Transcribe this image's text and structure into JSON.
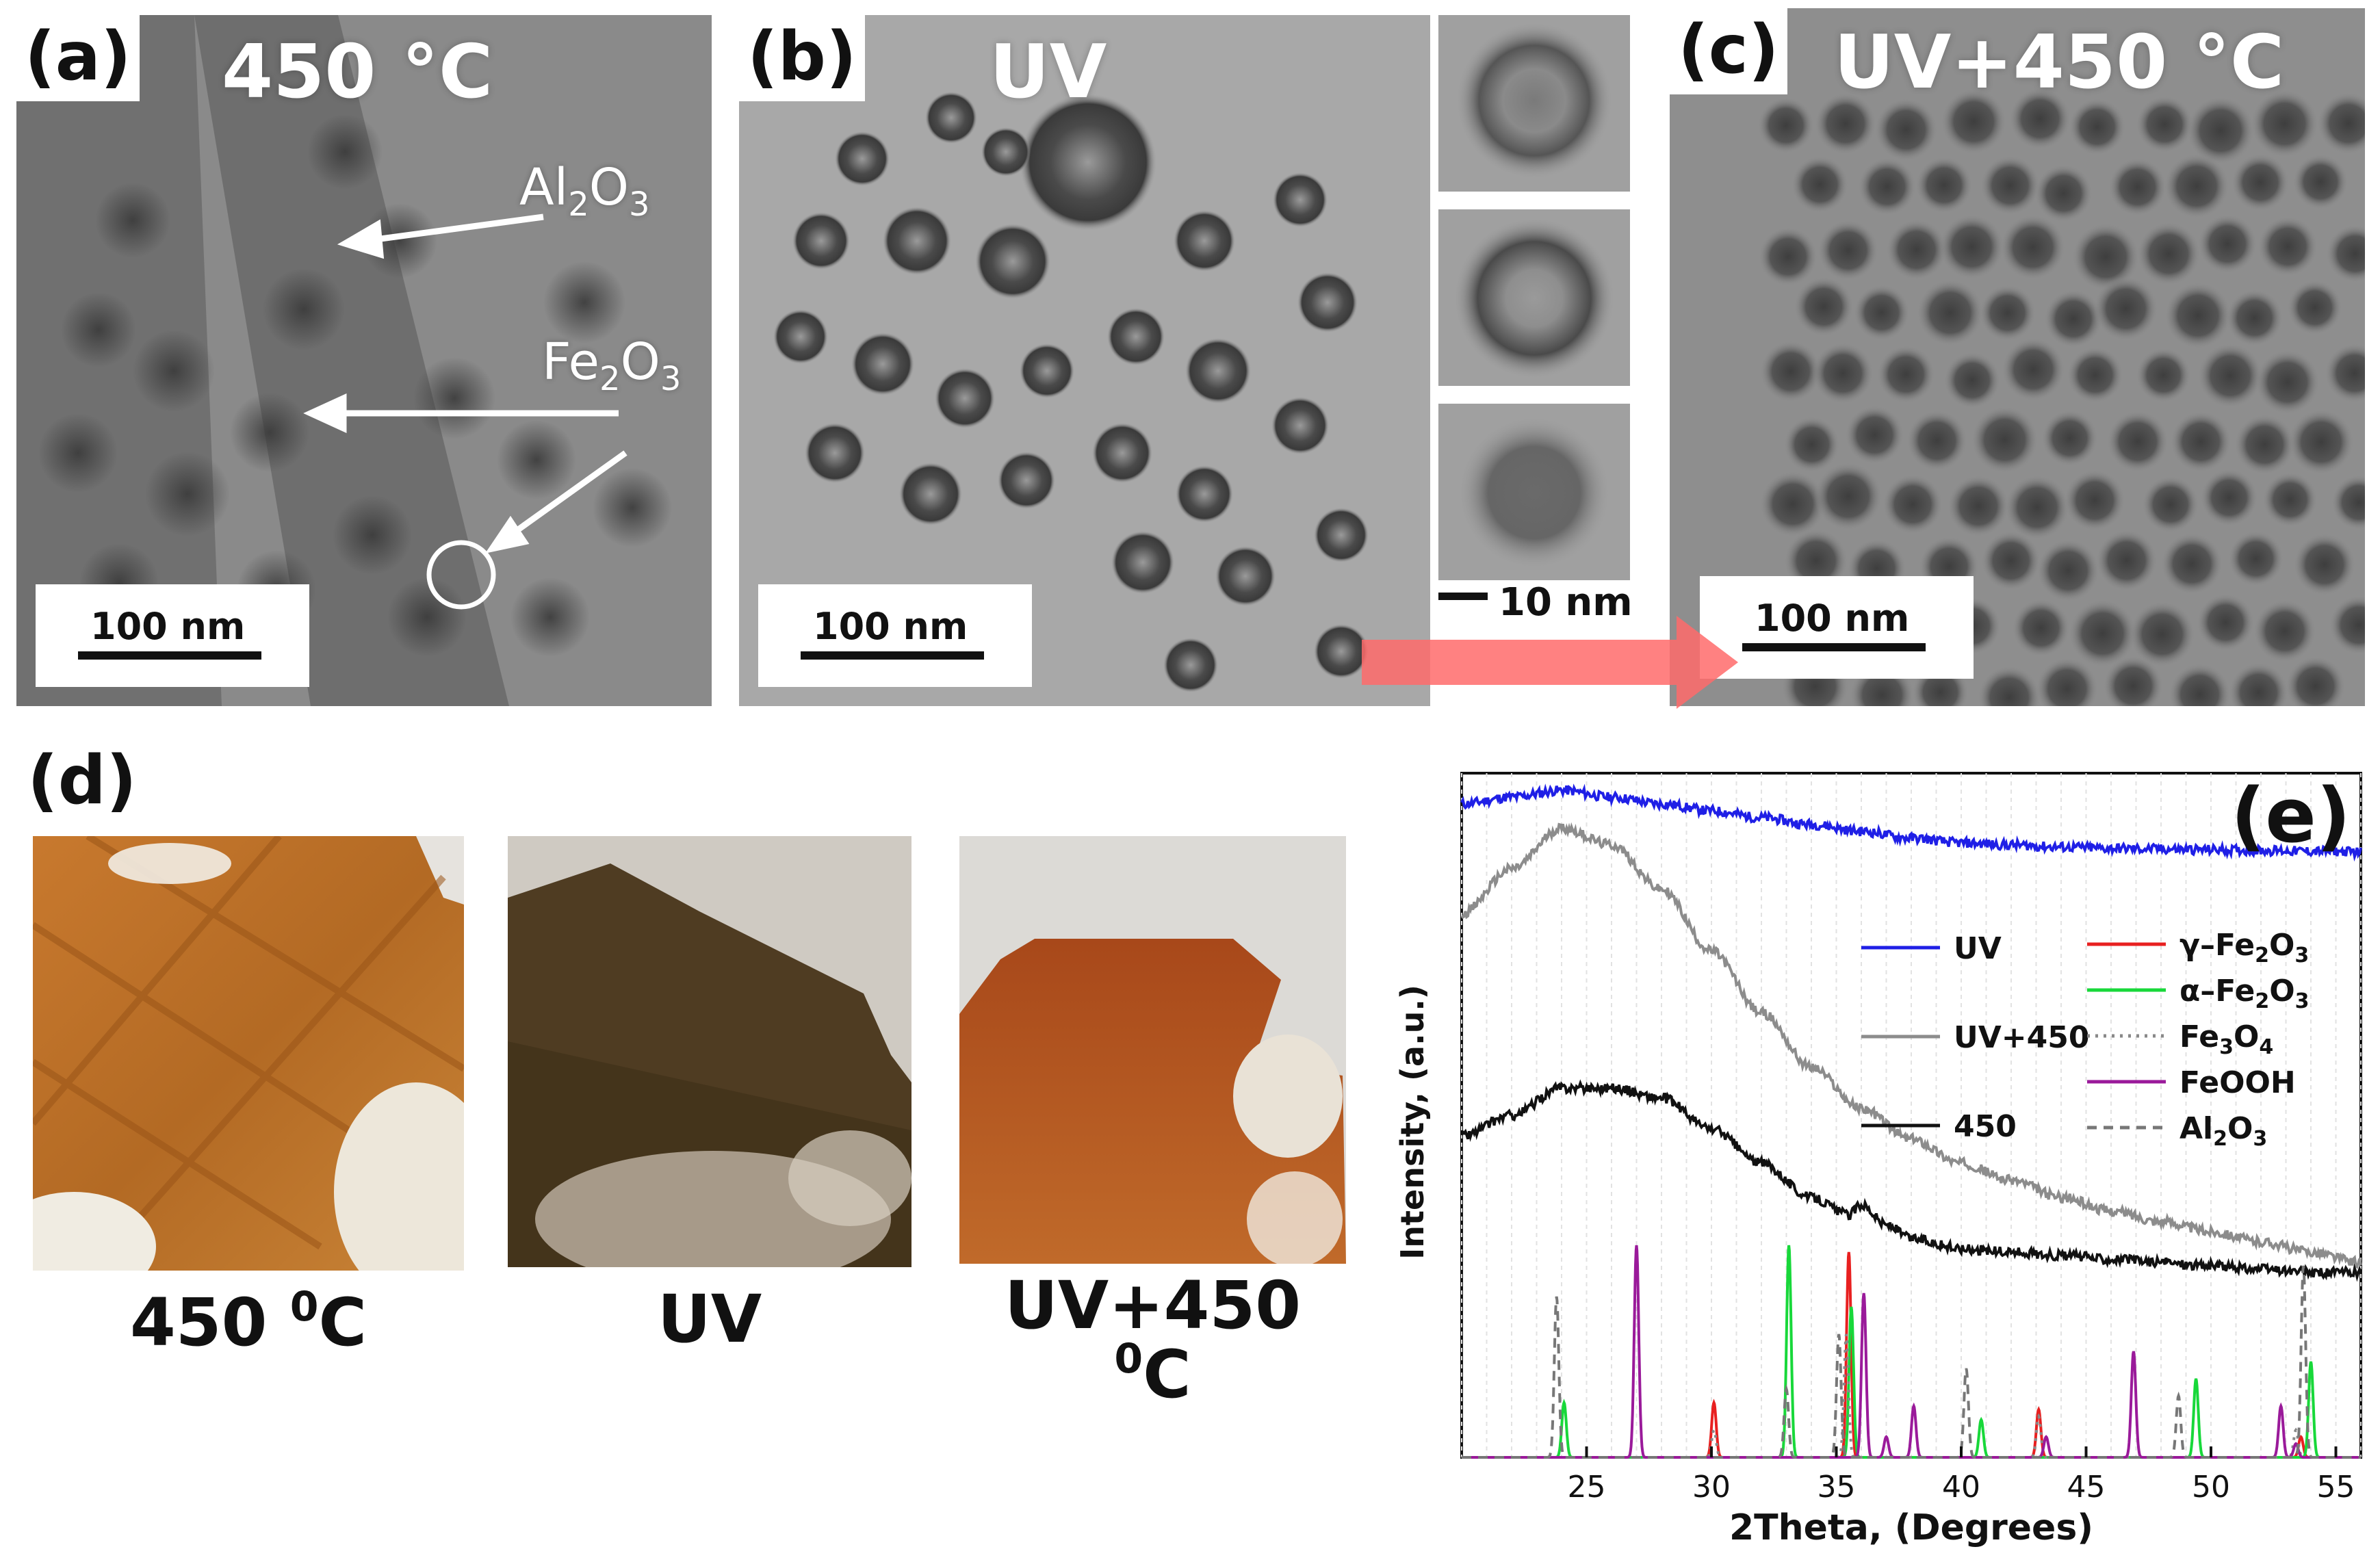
{
  "panels": {
    "a": {
      "label": "(a)",
      "condition": "450 °C",
      "scale": "100 nm",
      "annotations": [
        {
          "main": "Al",
          "sub1": "2",
          "mid": "O",
          "sub2": "3"
        },
        {
          "main": "Fe",
          "sub1": "2",
          "mid": "O",
          "sub2": "3"
        }
      ]
    },
    "b": {
      "label": "(b)",
      "condition": "UV",
      "scale": "100 nm",
      "inset_scale": "10 nm"
    },
    "c": {
      "label": "(c)",
      "condition": "UV+450 °C",
      "scale": "100 nm"
    },
    "d": {
      "label": "(d)",
      "captions": [
        {
          "text": "450 ",
          "sup": "0",
          "unit": "C"
        },
        {
          "text": "UV",
          "sup": "",
          "unit": ""
        },
        {
          "text": "UV+450 ",
          "sup": "0",
          "unit": "C"
        }
      ]
    },
    "e": {
      "label": "(e)"
    }
  },
  "colors": {
    "uv": "#1f1fe6",
    "uv450": "#8c8c8c",
    "t450": "#111111",
    "gamma": "#e82020",
    "alpha": "#18d83a",
    "fe3o4": "#888888",
    "feooh": "#9a1a9a",
    "al2o3": "#777777",
    "arrow": "#ff6b6b"
  },
  "chart_data": {
    "type": "line",
    "xlabel": "2Theta, (Degrees)",
    "ylabel": "Intensity, (a.u.)",
    "xlim": [
      20,
      56
    ],
    "xticks": [
      25,
      30,
      35,
      40,
      45,
      50,
      55
    ],
    "ylim": [
      0,
      100
    ],
    "legend": [
      {
        "name": "UV",
        "style": "solid",
        "color": "#1f1fe6"
      },
      {
        "name": "UV+450",
        "style": "solid",
        "color": "#8c8c8c"
      },
      {
        "name": "450",
        "style": "solid",
        "color": "#111111"
      },
      {
        "name": "γ–Fe2O3",
        "base": "γ–Fe",
        "s1": "2",
        "m": "O",
        "s2": "3",
        "style": "solid",
        "color": "#e82020"
      },
      {
        "name": "α–Fe2O3",
        "base": "α–Fe",
        "s1": "2",
        "m": "O",
        "s2": "3",
        "style": "solid",
        "color": "#18d83a"
      },
      {
        "name": "Fe3O4",
        "base": "Fe",
        "s1": "3",
        "m": "O",
        "s2": "4",
        "style": "dotted",
        "color": "#888888"
      },
      {
        "name": "FeOOH",
        "base": "FeOOH",
        "s1": "",
        "m": "",
        "s2": "",
        "style": "solid",
        "color": "#9a1a9a"
      },
      {
        "name": "Al2O3",
        "base": "Al",
        "s1": "2",
        "m": "O",
        "s2": "3",
        "style": "dashed",
        "color": "#777777"
      }
    ],
    "series": [
      {
        "name": "UV",
        "x": [
          20,
          22,
          24,
          26,
          28,
          30,
          32,
          34,
          36,
          38,
          40,
          42,
          44,
          46,
          48,
          50,
          52,
          54,
          56
        ],
        "y": [
          95.5,
          96.5,
          97.5,
          96.5,
          95.5,
          94.5,
          93.5,
          92.5,
          91.5,
          90.5,
          89.8,
          89.5,
          89.2,
          89.0,
          88.9,
          88.8,
          88.7,
          88.6,
          88.5
        ]
      },
      {
        "name": "UV+450",
        "x": [
          20,
          22,
          24,
          26,
          28,
          30,
          32,
          34,
          36,
          38,
          40,
          42,
          44,
          46,
          48,
          50,
          52,
          54,
          56
        ],
        "y": [
          79.5,
          86,
          92,
          89.5,
          83,
          74,
          65,
          57,
          51,
          46.5,
          43,
          40.5,
          38,
          36,
          34.5,
          33,
          31.5,
          30,
          28.5
        ]
      },
      {
        "name": "450",
        "x": [
          20,
          22,
          24,
          26,
          28,
          30,
          32,
          34,
          35.5,
          36,
          37,
          38,
          40,
          42,
          44,
          46,
          48,
          50,
          52,
          54,
          56
        ],
        "y": [
          47,
          50,
          54,
          54,
          52.5,
          48,
          43,
          38,
          35.5,
          37,
          34,
          32,
          30.5,
          30,
          29.5,
          29,
          28.5,
          28,
          27.5,
          27,
          27
        ]
      }
    ],
    "reference_peaks": [
      {
        "phase": "γ–Fe2O3",
        "peaks": [
          [
            30.1,
            8
          ],
          [
            35.5,
            30
          ],
          [
            43.1,
            7
          ],
          [
            53.6,
            3
          ]
        ]
      },
      {
        "phase": "α–Fe2O3",
        "peaks": [
          [
            24.1,
            8
          ],
          [
            33.1,
            31
          ],
          [
            35.6,
            22
          ],
          [
            40.8,
            5.5
          ],
          [
            49.4,
            11.5
          ],
          [
            54.0,
            14
          ]
        ]
      },
      {
        "phase": "Fe3O4",
        "peaks": [
          [
            30.1,
            4
          ],
          [
            35.4,
            18
          ],
          [
            43.1,
            6
          ],
          [
            53.4,
            4
          ]
        ]
      },
      {
        "phase": "FeOOH",
        "peaks": [
          [
            27.0,
            31
          ],
          [
            36.1,
            24
          ],
          [
            37.0,
            3
          ],
          [
            38.1,
            7.5
          ],
          [
            43.4,
            3
          ],
          [
            46.9,
            15.5
          ],
          [
            52.8,
            7.5
          ],
          [
            53.4,
            2
          ]
        ]
      },
      {
        "phase": "Al2O3",
        "peaks": [
          [
            23.8,
            23.5
          ],
          [
            33.0,
            10
          ],
          [
            35.1,
            18
          ],
          [
            40.2,
            13
          ],
          [
            48.7,
            9
          ],
          [
            53.7,
            28
          ]
        ]
      }
    ]
  }
}
